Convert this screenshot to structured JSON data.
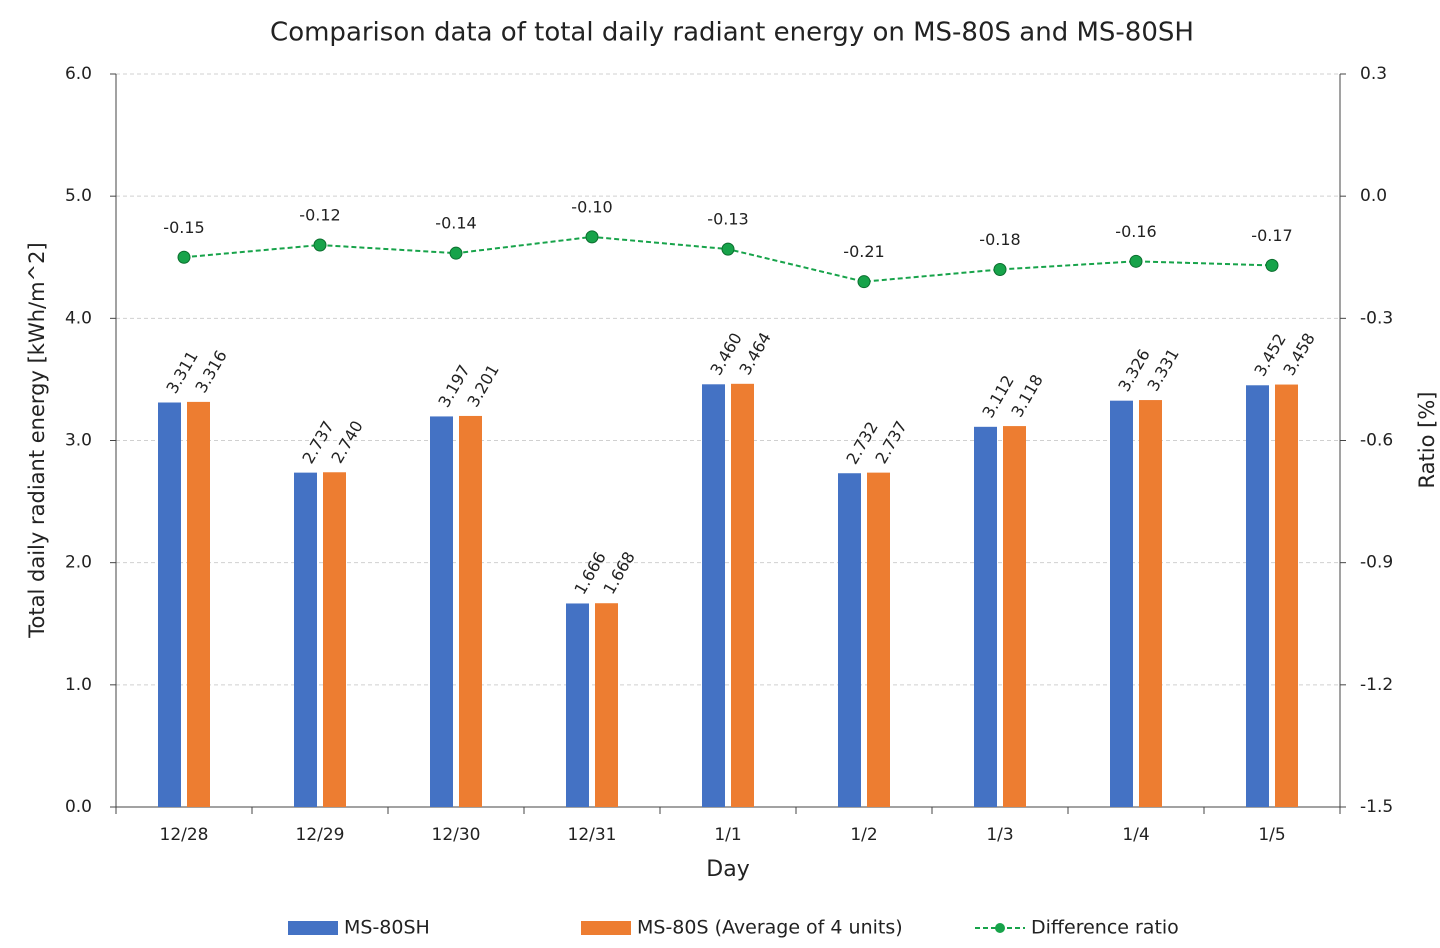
{
  "chart_data": {
    "type": "bar",
    "title": "Comparison data of total daily radiant energy on MS-80S and MS-80SH",
    "x_label": "Day",
    "y_label": "Total daily radiant energy [kWh/m^2]",
    "y2_label": "Ratio [%]",
    "categories": [
      "12/28",
      "12/29",
      "12/30",
      "12/31",
      "1/1",
      "1/2",
      "1/3",
      "1/4",
      "1/5"
    ],
    "series": [
      {
        "name": "MS-80SH",
        "color": "#4472c4",
        "type": "bar",
        "values": [
          3.311,
          2.737,
          3.197,
          1.666,
          3.46,
          2.732,
          3.112,
          3.326,
          3.452
        ],
        "value_labels": [
          "3.311",
          "2.737",
          "3.197",
          "1.666",
          "3.460",
          "2.732",
          "3.112",
          "3.326",
          "3.452"
        ]
      },
      {
        "name": "MS-80S (Average of 4 units)",
        "color": "#ed7d31",
        "type": "bar",
        "values": [
          3.316,
          2.74,
          3.201,
          1.668,
          3.464,
          2.737,
          3.118,
          3.331,
          3.458
        ],
        "value_labels": [
          "3.316",
          "2.740",
          "3.201",
          "1.668",
          "3.464",
          "2.737",
          "3.118",
          "3.331",
          "3.458"
        ]
      },
      {
        "name": "Difference ratio",
        "color": "#17a34a",
        "type": "line",
        "axis": "y2",
        "values": [
          -0.15,
          -0.12,
          -0.14,
          -0.1,
          -0.13,
          -0.21,
          -0.18,
          -0.16,
          -0.17
        ],
        "value_labels": [
          "-0.15",
          "-0.12",
          "-0.14",
          "-0.10",
          "-0.13",
          "-0.21",
          "-0.18",
          "-0.16",
          "-0.17"
        ]
      }
    ],
    "ylim": [
      0,
      6
    ],
    "yticks": [
      {
        "value": 0,
        "label": "0.0"
      },
      {
        "value": 1,
        "label": "1.0"
      },
      {
        "value": 2,
        "label": "2.0"
      },
      {
        "value": 3,
        "label": "3.0"
      },
      {
        "value": 4,
        "label": "4.0"
      },
      {
        "value": 5,
        "label": "5.0"
      },
      {
        "value": 6,
        "label": "6.0"
      }
    ],
    "y2lim": [
      -1.5,
      0.3
    ],
    "y2ticks": [
      -1.5,
      -1.2,
      -0.9,
      -0.6,
      -0.3,
      {
        "value": 0,
        "label": "0.0"
      },
      0.3
    ],
    "grid": true,
    "legend": "bottom"
  }
}
